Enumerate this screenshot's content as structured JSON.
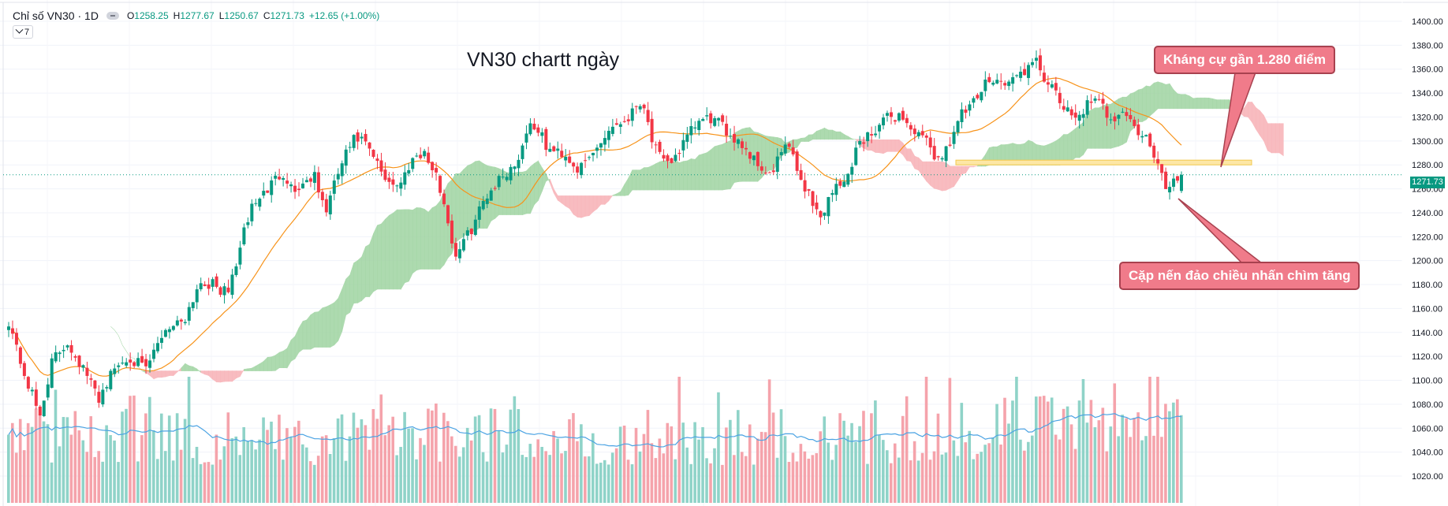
{
  "legend": {
    "symbol": "Chỉ số VN30 · 1D",
    "o_label": "O",
    "o_value": "1258.25",
    "h_label": "H",
    "h_value": "1277.67",
    "l_label": "L",
    "l_value": "1250.67",
    "c_label": "C",
    "c_value": "1271.73",
    "change": "+12.65 (+1.00%)",
    "collapse_count": "7"
  },
  "annotations": {
    "title": "VN30 chartt ngày",
    "resistance": "Kháng cự gần 1.280 điểm",
    "reversal": "Cặp nến đảo chiều nhấn chìm tăng"
  },
  "colors": {
    "up": "#089981",
    "down": "#f23645",
    "up_volume": "#8fd3c8",
    "down_volume": "#f5a3ab",
    "ma": "#f7931a",
    "cloud_bull": "#a5d6a7",
    "cloud_bear": "#f8b5ba",
    "resistance": "#fde7a6",
    "volume_ma": "#4ba3e3",
    "callout_bg": "#f07b8a"
  },
  "chart_data": {
    "type": "candlestick",
    "title": "VN30 chartt ngày",
    "symbol": "Chỉ số VN30",
    "interval": "1D",
    "last_price": "1271.73",
    "ylim": [
      1020,
      1400
    ],
    "y_ticks": [
      "1400.00",
      "1380.00",
      "1360.00",
      "1340.00",
      "1320.00",
      "1300.00",
      "1280.00",
      "1260.00",
      "1240.00",
      "1220.00",
      "1200.00",
      "1180.00",
      "1160.00",
      "1140.00",
      "1120.00",
      "1100.00",
      "1080.00",
      "1060.00",
      "1040.00",
      "1020.00"
    ],
    "resistance_level": 1282,
    "close_path": [
      [
        0,
        1150
      ],
      [
        8,
        1105
      ],
      [
        16,
        1070
      ],
      [
        22,
        1115
      ],
      [
        30,
        1132
      ],
      [
        38,
        1110
      ],
      [
        46,
        1085
      ],
      [
        54,
        1110
      ],
      [
        62,
        1120
      ],
      [
        70,
        1108
      ],
      [
        80,
        1143
      ],
      [
        90,
        1152
      ],
      [
        98,
        1183
      ],
      [
        104,
        1180
      ],
      [
        112,
        1172
      ],
      [
        118,
        1208
      ],
      [
        124,
        1245
      ],
      [
        130,
        1255
      ],
      [
        140,
        1275
      ],
      [
        146,
        1258
      ],
      [
        156,
        1272
      ],
      [
        162,
        1240
      ],
      [
        170,
        1280
      ],
      [
        176,
        1300
      ],
      [
        180,
        1302
      ],
      [
        186,
        1288
      ],
      [
        192,
        1270
      ],
      [
        200,
        1262
      ],
      [
        206,
        1285
      ],
      [
        212,
        1292
      ],
      [
        220,
        1265
      ],
      [
        224,
        1240
      ],
      [
        228,
        1204
      ],
      [
        236,
        1224
      ],
      [
        244,
        1254
      ],
      [
        252,
        1270
      ],
      [
        260,
        1282
      ],
      [
        266,
        1314
      ],
      [
        270,
        1312
      ],
      [
        276,
        1292
      ],
      [
        284,
        1290
      ],
      [
        292,
        1275
      ],
      [
        300,
        1292
      ],
      [
        308,
        1312
      ],
      [
        316,
        1318
      ],
      [
        324,
        1336
      ],
      [
        330,
        1296
      ],
      [
        336,
        1278
      ],
      [
        344,
        1294
      ],
      [
        352,
        1315
      ],
      [
        360,
        1319
      ],
      [
        368,
        1307
      ],
      [
        374,
        1300
      ],
      [
        380,
        1287
      ],
      [
        390,
        1270
      ],
      [
        398,
        1300
      ],
      [
        404,
        1272
      ],
      [
        410,
        1254
      ],
      [
        416,
        1233
      ],
      [
        420,
        1258
      ],
      [
        428,
        1265
      ],
      [
        434,
        1296
      ],
      [
        440,
        1305
      ],
      [
        448,
        1318
      ],
      [
        456,
        1322
      ],
      [
        464,
        1306
      ],
      [
        470,
        1298
      ],
      [
        476,
        1283
      ],
      [
        482,
        1302
      ],
      [
        488,
        1324
      ],
      [
        492,
        1327
      ],
      [
        498,
        1342
      ],
      [
        502,
        1355
      ],
      [
        510,
        1347
      ],
      [
        518,
        1357
      ],
      [
        526,
        1365
      ],
      [
        532,
        1347
      ],
      [
        538,
        1332
      ],
      [
        544,
        1318
      ],
      [
        552,
        1330
      ],
      [
        558,
        1332
      ],
      [
        564,
        1318
      ],
      [
        570,
        1327
      ],
      [
        576,
        1310
      ],
      [
        582,
        1302
      ],
      [
        588,
        1278
      ],
      [
        592,
        1262
      ],
      [
        596,
        1267
      ],
      [
        600,
        1272
      ]
    ],
    "volume_range": [
      0,
      100
    ],
    "series_note": "Daily candles with 20-day moving average (orange), Ichimoku cloud (green/red), volume bars with volume MA."
  }
}
